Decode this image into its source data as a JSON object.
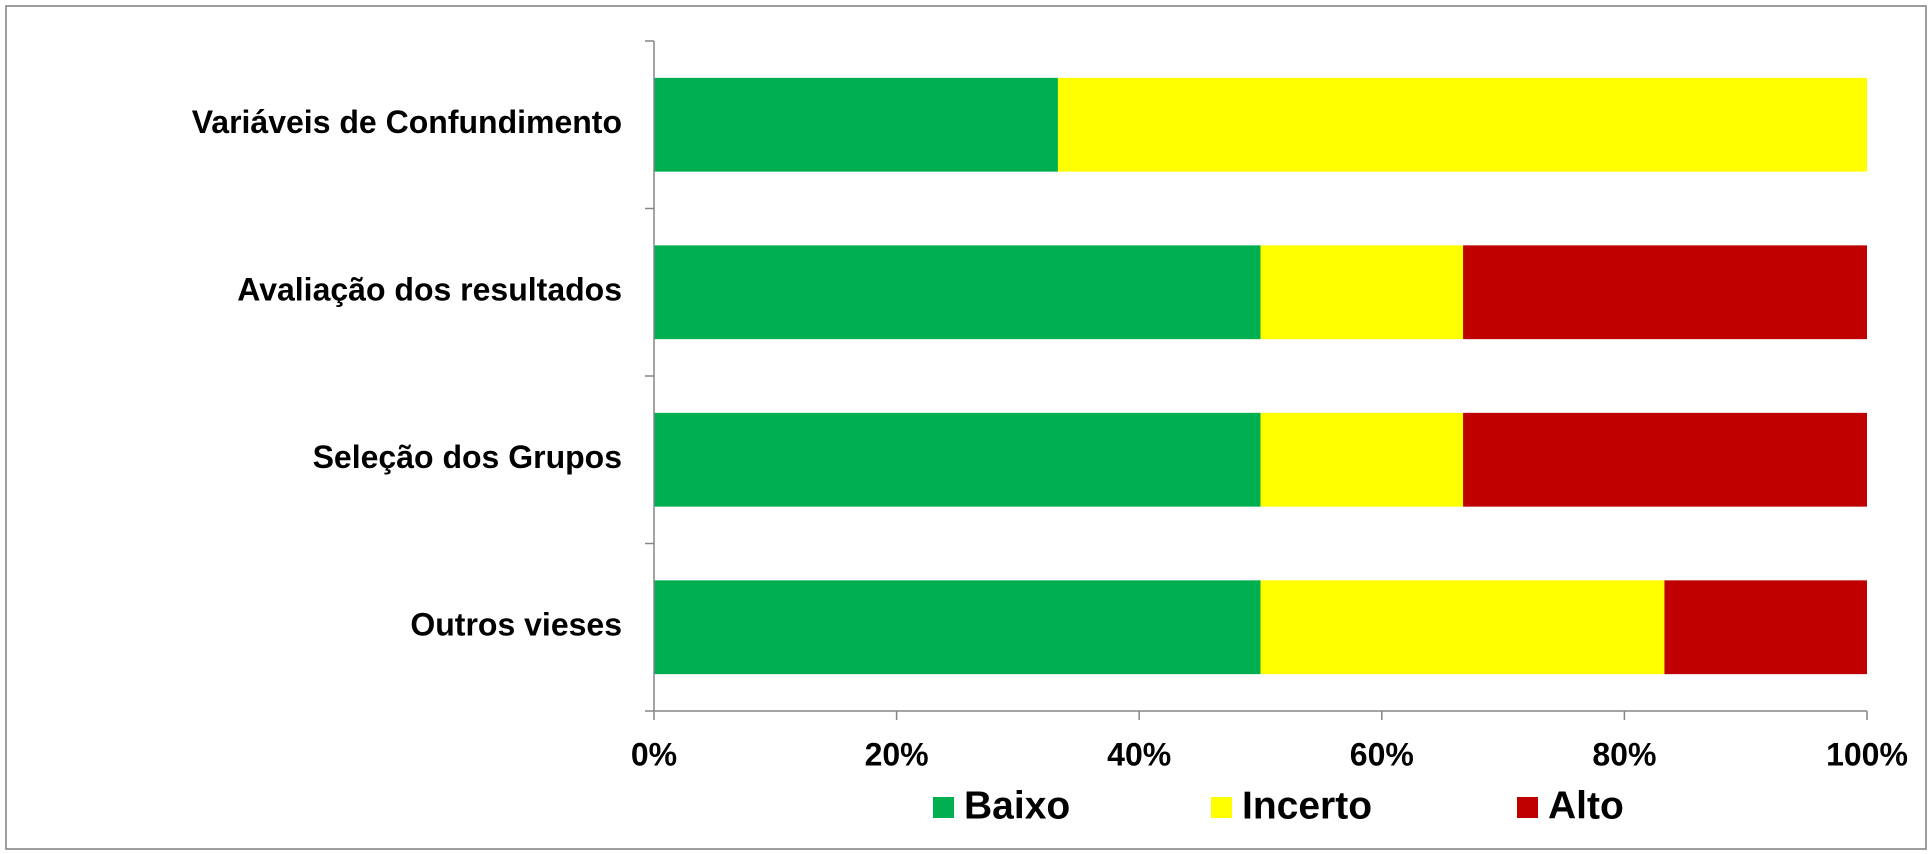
{
  "chart_data": {
    "type": "stacked-barh",
    "categories": [
      "Variáveis de Confundimento",
      "Avaliação dos resultados",
      "Seleção dos Grupos",
      "Outros vieses"
    ],
    "series": [
      {
        "name": "Baixo",
        "color": "#00b050",
        "values": [
          33.3,
          50,
          50,
          50
        ]
      },
      {
        "name": "Incerto",
        "color": "#ffff00",
        "values": [
          66.7,
          16.7,
          16.7,
          33.3
        ]
      },
      {
        "name": "Alto",
        "color": "#c00000",
        "values": [
          0,
          33.3,
          33.3,
          16.7
        ]
      }
    ],
    "xlim": [
      0,
      100
    ],
    "xticks": [
      {
        "value": 0,
        "label": "0%"
      },
      {
        "value": 20,
        "label": "20%"
      },
      {
        "value": 40,
        "label": "40%"
      },
      {
        "value": 60,
        "label": "60%"
      },
      {
        "value": 80,
        "label": "80%"
      },
      {
        "value": 100,
        "label": "100%"
      }
    ],
    "legend": "bottom"
  }
}
